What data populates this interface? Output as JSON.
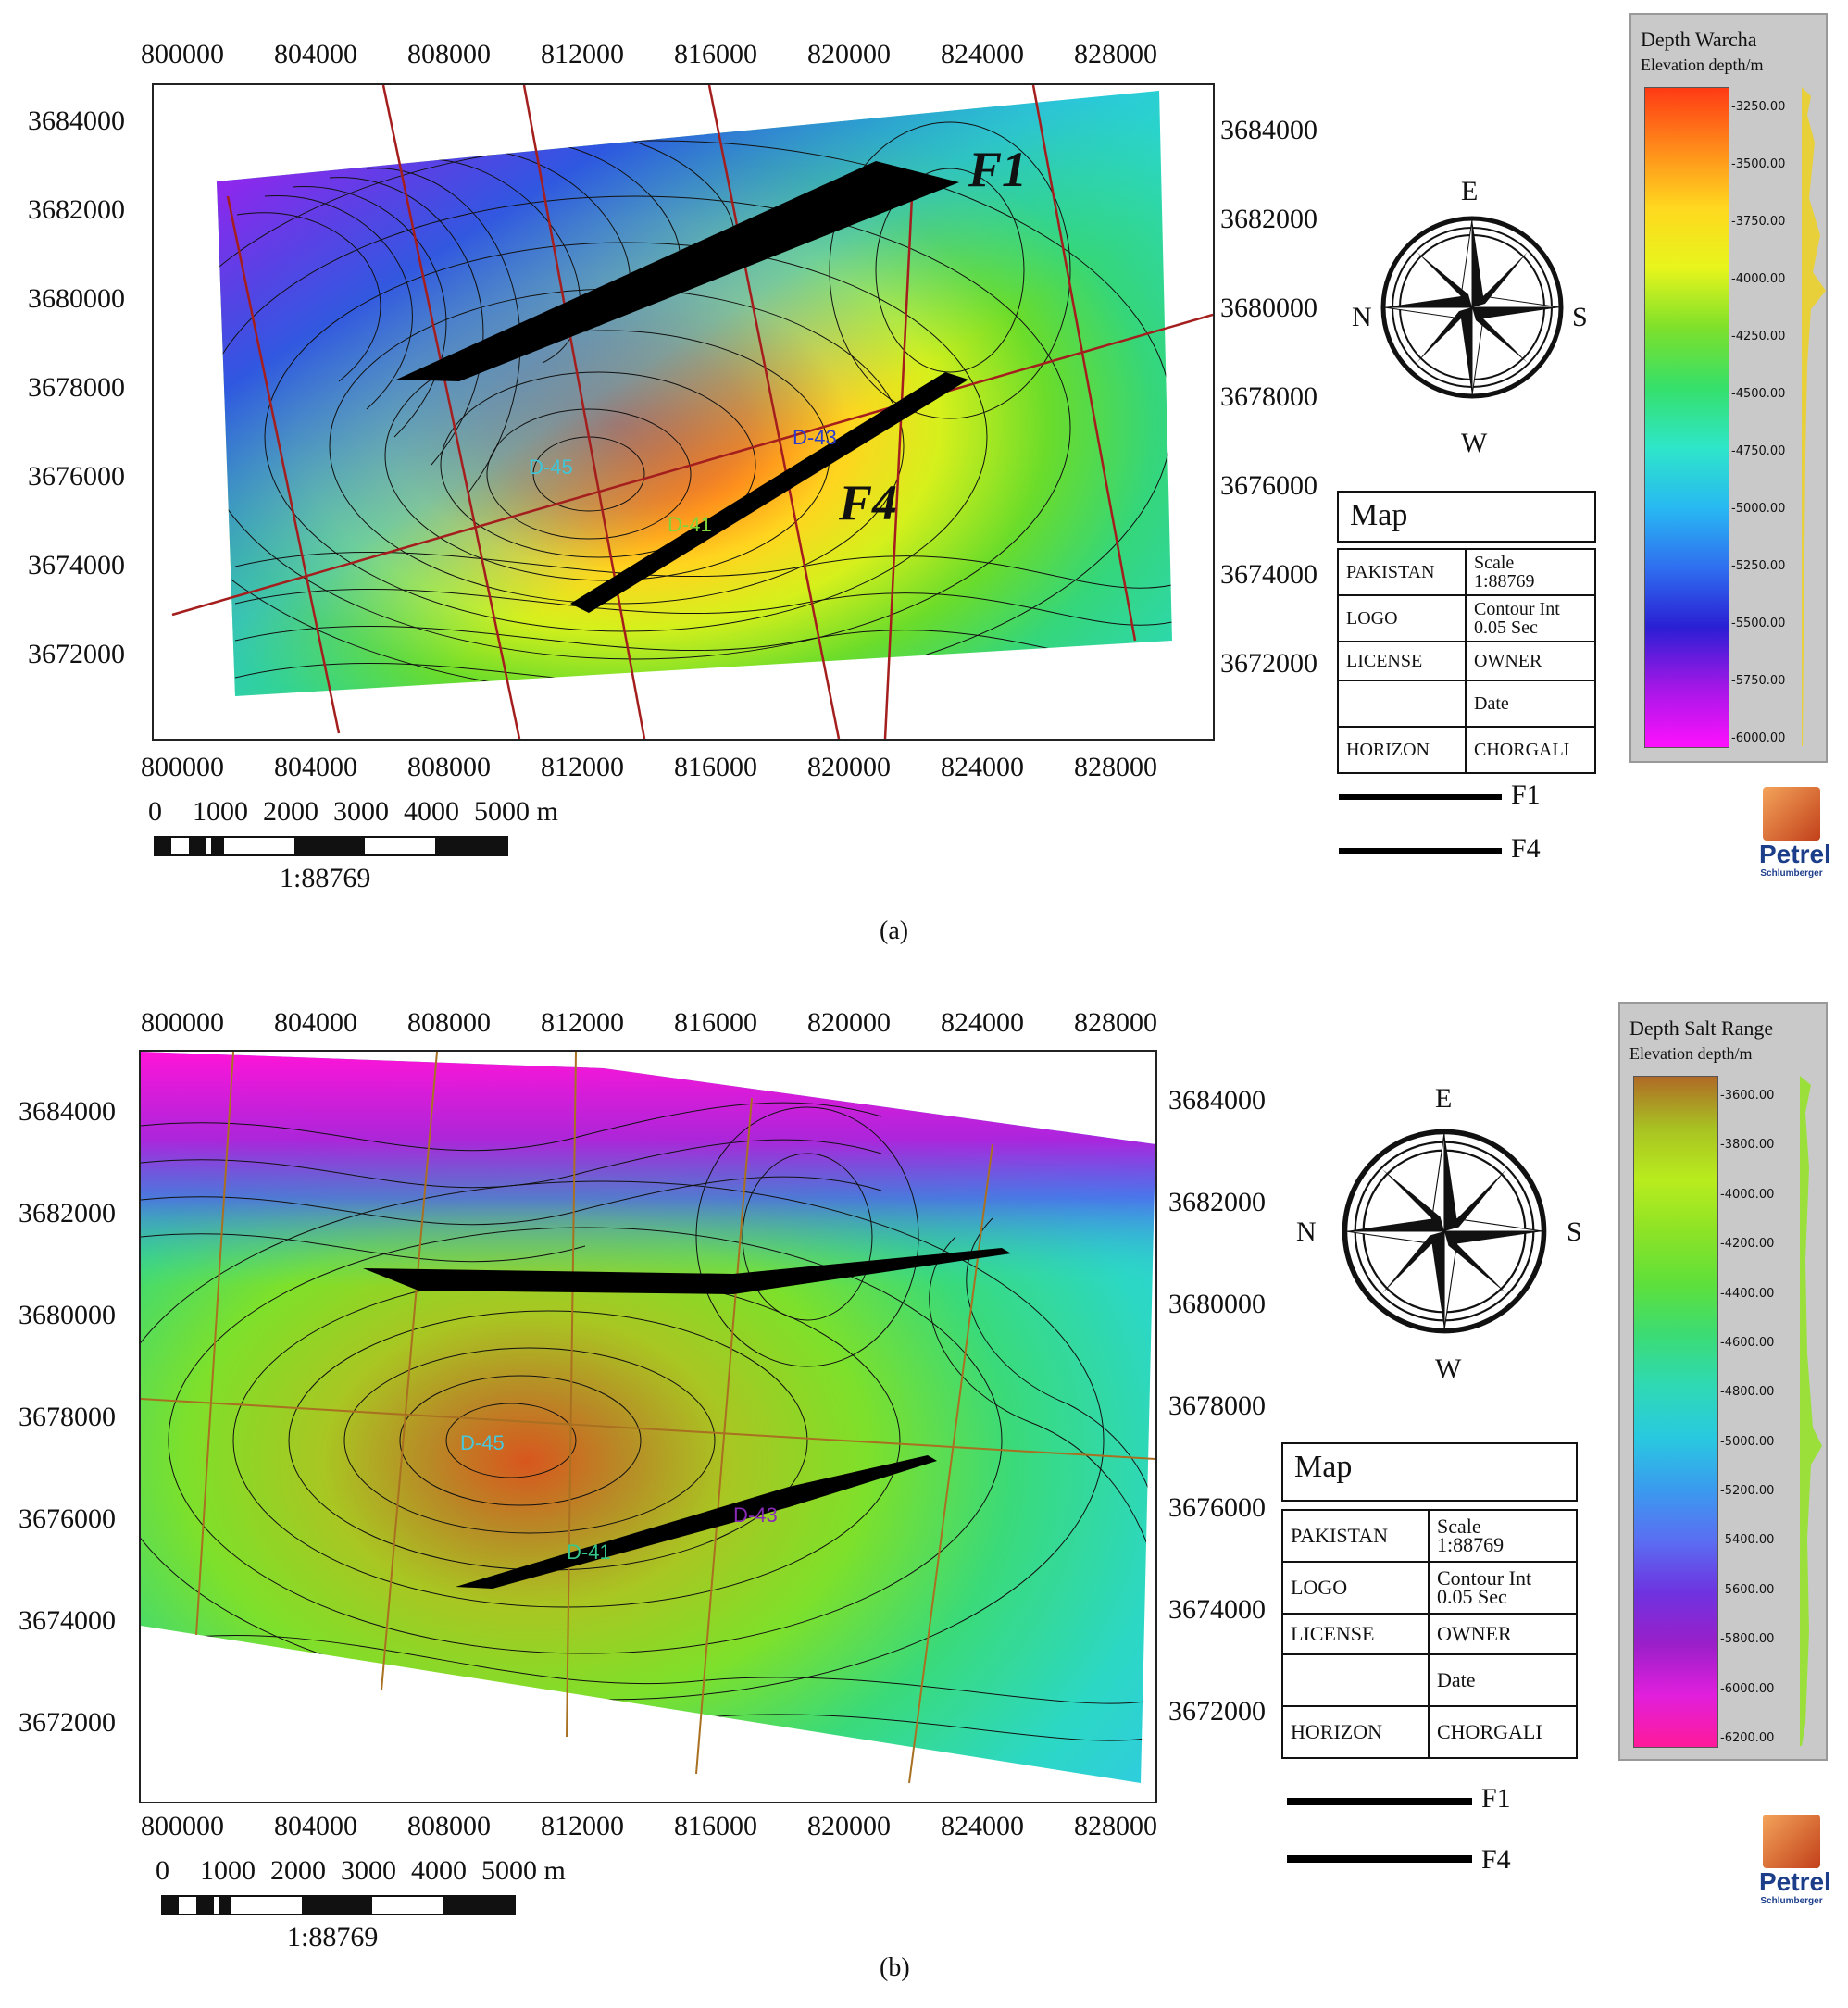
{
  "panels": [
    {
      "caption": "(a)",
      "colorbar": {
        "title": "Depth Warcha",
        "subtitle": "Elevation depth/m",
        "ticks": [
          "-3250.00",
          "-3500.00",
          "-3750.00",
          "-4000.00",
          "-4250.00",
          "-4500.00",
          "-4750.00",
          "-5000.00",
          "-5250.00",
          "-5500.00",
          "-5750.00",
          "-6000.00"
        ],
        "colors": [
          "#ff3a14",
          "#ff8a1a",
          "#ffd81f",
          "#e8f51c",
          "#7ee02a",
          "#35e06a",
          "#2ee6c9",
          "#28b9f2",
          "#2f6ff0",
          "#2a1fd4",
          "#a317e6",
          "#ff10ff"
        ]
      },
      "x_ticks_top": [
        "800000",
        "804000",
        "808000",
        "812000",
        "816000",
        "820000",
        "824000",
        "828000"
      ],
      "x_ticks_bottom": [
        "800000",
        "804000",
        "808000",
        "812000",
        "816000",
        "820000",
        "824000",
        "828000"
      ],
      "y_ticks_left": [
        "3684000",
        "3682000",
        "3680000",
        "3678000",
        "3676000",
        "3674000",
        "3672000"
      ],
      "y_ticks_right": [
        "3684000",
        "3682000",
        "3680000",
        "3678000",
        "3676000",
        "3674000",
        "3672000"
      ],
      "wells": [
        "D-45",
        "D-43",
        "D-41"
      ],
      "fault_labels": [
        "F1",
        "F4"
      ]
    },
    {
      "caption": "(b)",
      "colorbar": {
        "title": "Depth Salt Range",
        "subtitle": "Elevation depth/m",
        "ticks": [
          "-3600.00",
          "-3800.00",
          "-4000.00",
          "-4200.00",
          "-4400.00",
          "-4600.00",
          "-4800.00",
          "-5000.00",
          "-5200.00",
          "-5400.00",
          "-5600.00",
          "-5800.00",
          "-6000.00",
          "-6200.00"
        ],
        "colors": [
          "#b06a26",
          "#a8c222",
          "#b9ec1e",
          "#8de326",
          "#5fe03a",
          "#3bdc74",
          "#2fd9b4",
          "#29c9e0",
          "#3a9bef",
          "#5a6ef2",
          "#6e33e0",
          "#9a1fc9",
          "#e11fdc",
          "#ff1a9a"
        ]
      },
      "x_ticks_top": [
        "800000",
        "804000",
        "808000",
        "812000",
        "816000",
        "820000",
        "824000",
        "828000"
      ],
      "x_ticks_bottom": [
        "800000",
        "804000",
        "808000",
        "812000",
        "816000",
        "820000",
        "824000",
        "828000"
      ],
      "y_ticks_left": [
        "3684000",
        "3682000",
        "3680000",
        "3678000",
        "3676000",
        "3674000",
        "3672000"
      ],
      "y_ticks_right": [
        "3684000",
        "3682000",
        "3680000",
        "3678000",
        "3676000",
        "3674000",
        "3672000"
      ],
      "wells": [
        "D-45",
        "D-43",
        "D-41"
      ],
      "fault_labels": []
    }
  ],
  "compass": {
    "north": "N",
    "south": "S",
    "east": "E",
    "west": "W"
  },
  "info_box": {
    "title": "Map",
    "rows": [
      [
        "PAKISTAN",
        "Scale\n1:88769"
      ],
      [
        "LOGO",
        "Contour Int\n0.05 Sec"
      ],
      [
        "LICENSE",
        "OWNER"
      ],
      [
        "",
        "Date"
      ],
      [
        "HORIZON",
        "CHORGALI"
      ]
    ]
  },
  "legend": {
    "f1": "F1",
    "f4": "F4"
  },
  "scale_bar": {
    "ticks": [
      "0",
      "1000",
      "2000",
      "3000",
      "4000",
      "5000 m"
    ],
    "ratio": "1:88769"
  },
  "logo": {
    "name": "Petrel",
    "sub": "Schlumberger"
  }
}
